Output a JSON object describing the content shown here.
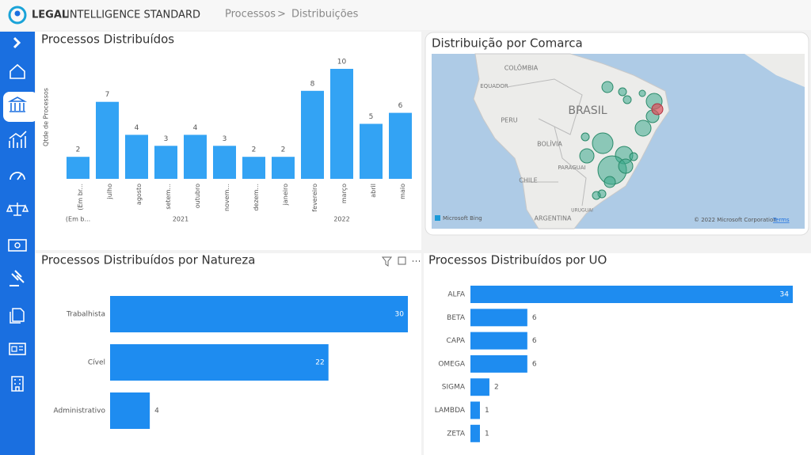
{
  "header": {
    "brand_bold": "LEGAL",
    "brand_rest": "INTELLIGENCE STANDARD",
    "breadcrumb": [
      "Processos",
      ">",
      "Distribuições"
    ]
  },
  "map": {
    "title": "Distribuição por Comarca",
    "labels": [
      "COLÔMBIA",
      "EQUADOR",
      "PERU",
      "BRASIL",
      "BOLÍVIA",
      "PARAGUAI",
      "CHILE",
      "ARGENTINA",
      "URUGUAI"
    ],
    "attribution": "Microsoft Bing",
    "copyright": "© 2022 Microsoft Corporation",
    "terms": "Terms"
  },
  "chart_data": [
    {
      "type": "bar",
      "title": "Processos Distribuídos",
      "y_label": "Qtde de Processos",
      "categories": [
        "(Em br...",
        "julho",
        "agosto",
        "setem...",
        "outubro",
        "novem...",
        "dezem...",
        "janeiro",
        "fevereiro",
        "março",
        "abril",
        "maio"
      ],
      "values": [
        2,
        7,
        4,
        3,
        4,
        3,
        2,
        2,
        8,
        10,
        5,
        6
      ],
      "x_groups": [
        "(Em b...",
        "2021",
        "2022"
      ],
      "color": "#33a3f4"
    },
    {
      "type": "hbar",
      "title": "Processos Distribuídos por Natureza",
      "categories": [
        "Trabalhista",
        "Cível",
        "Administrativo"
      ],
      "values": [
        30,
        22,
        4
      ],
      "color": "#1e8cf0"
    },
    {
      "type": "hbar",
      "title": "Processos Distribuídos por UO",
      "categories": [
        "ALFA",
        "BETA",
        "CAPA",
        "OMEGA",
        "SIGMA",
        "LAMBDA",
        "ZETA"
      ],
      "values": [
        34,
        6,
        6,
        6,
        2,
        1,
        1
      ],
      "color": "#1e8cf0"
    }
  ]
}
